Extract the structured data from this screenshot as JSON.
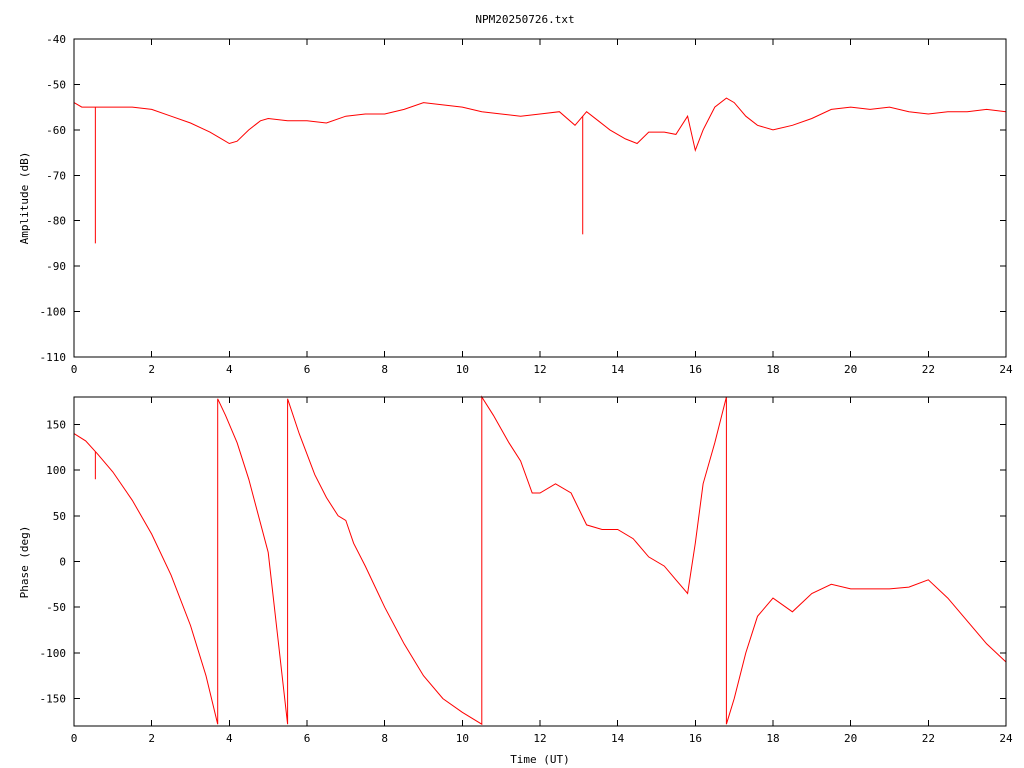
{
  "title": "NPM20250726.txt",
  "colors": {
    "series": "#ff0000",
    "frame": "#000000",
    "background": "#ffffff"
  },
  "chart_data": [
    {
      "type": "line",
      "title": "NPM20250726.txt",
      "xlabel": "",
      "ylabel": "Amplitude (dB)",
      "xlim": [
        0,
        24
      ],
      "ylim": [
        -110,
        -40
      ],
      "xticks": [
        "0",
        "2",
        "4",
        "6",
        "8",
        "10",
        "12",
        "14",
        "16",
        "18",
        "20",
        "22",
        "24"
      ],
      "yticks": [
        "-40",
        "-50",
        "-60",
        "-70",
        "-80",
        "-90",
        "-100",
        "-110"
      ],
      "grid": false,
      "series": [
        {
          "color": "#ff0000",
          "x": [
            0,
            0.2,
            0.5,
            1.0,
            1.5,
            2.0,
            2.5,
            3.0,
            3.5,
            3.8,
            4.0,
            4.2,
            4.5,
            4.8,
            5.0,
            5.5,
            6.0,
            6.5,
            7.0,
            7.5,
            8.0,
            8.5,
            9.0,
            9.5,
            10.0,
            10.5,
            11.0,
            11.5,
            12.0,
            12.5,
            12.9,
            13.2,
            13.5,
            13.8,
            14.2,
            14.5,
            14.8,
            15.2,
            15.5,
            15.8,
            16.0,
            16.2,
            16.5,
            16.8,
            17.0,
            17.3,
            17.6,
            18.0,
            18.5,
            19.0,
            19.5,
            20.0,
            20.5,
            21.0,
            21.5,
            22.0,
            22.5,
            23.0,
            23.5,
            24.0
          ],
          "y": [
            -54,
            -55,
            -55,
            -55,
            -55,
            -55.5,
            -57,
            -58.5,
            -60.5,
            -62,
            -63,
            -62.5,
            -60,
            -58,
            -57.5,
            -58,
            -58,
            -58.5,
            -57,
            -56.5,
            -56.5,
            -55.5,
            -54,
            -54.5,
            -55,
            -56,
            -56.5,
            -57,
            -56.5,
            -56,
            -59,
            -56,
            -58,
            -60,
            -62,
            -63,
            -60.5,
            -60.5,
            -61,
            -57,
            -64.5,
            -60,
            -55,
            -53,
            -54,
            -57,
            -59,
            -60,
            -59,
            -57.5,
            -55.5,
            -55,
            -55.5,
            -55,
            -56,
            -56.5,
            -56,
            -56,
            -55.5,
            -56
          ],
          "spikes": [
            {
              "x": 0.55,
              "y": -85
            },
            {
              "x": 13.1,
              "y": -83
            }
          ]
        }
      ]
    },
    {
      "type": "line",
      "title": "",
      "xlabel": "Time (UT)",
      "ylabel": "Phase (deg)",
      "xlim": [
        0,
        24
      ],
      "ylim": [
        -180,
        180
      ],
      "xticks": [
        "0",
        "2",
        "4",
        "6",
        "8",
        "10",
        "12",
        "14",
        "16",
        "18",
        "20",
        "22",
        "24"
      ],
      "yticks": [
        "150",
        "100",
        "50",
        "0",
        "-50",
        "-100",
        "-150"
      ],
      "grid": false,
      "series": [
        {
          "color": "#ff0000",
          "x": [
            0,
            0.3,
            0.6,
            1.0,
            1.5,
            2.0,
            2.5,
            3.0,
            3.4,
            3.7,
            3.7,
            3.9,
            4.2,
            4.5,
            5.0,
            5.5,
            5.5,
            5.8,
            6.2,
            6.5,
            6.8,
            7.0,
            7.2,
            7.5,
            8.0,
            8.5,
            9.0,
            9.5,
            10.0,
            10.5,
            10.5,
            10.8,
            11.2,
            11.5,
            11.8,
            12.0,
            12.4,
            12.8,
            13.2,
            13.6,
            14.0,
            14.4,
            14.8,
            15.2,
            15.5,
            15.8,
            16.0,
            16.2,
            16.5,
            16.8,
            16.8,
            17.0,
            17.3,
            17.6,
            18.0,
            18.5,
            19.0,
            19.5,
            20.0,
            20.5,
            21.0,
            21.5,
            22.0,
            22.5,
            23.0,
            23.5,
            24.0
          ],
          "y": [
            140,
            132,
            118,
            98,
            67,
            30,
            -15,
            -70,
            -125,
            -178,
            178,
            160,
            130,
            90,
            10,
            -178,
            178,
            140,
            95,
            70,
            50,
            45,
            20,
            -5,
            -50,
            -90,
            -125,
            -150,
            -165,
            -178,
            180,
            160,
            130,
            110,
            75,
            75,
            85,
            75,
            40,
            35,
            35,
            25,
            5,
            -5,
            -20,
            -35,
            20,
            85,
            130,
            180,
            -178,
            -150,
            -100,
            -60,
            -40,
            -55,
            -35,
            -25,
            -30,
            -30,
            -30,
            -28,
            -20,
            -40,
            -65,
            -90,
            -110
          ],
          "spikes": [
            {
              "x": 0.55,
              "y": 90
            }
          ]
        }
      ]
    }
  ]
}
